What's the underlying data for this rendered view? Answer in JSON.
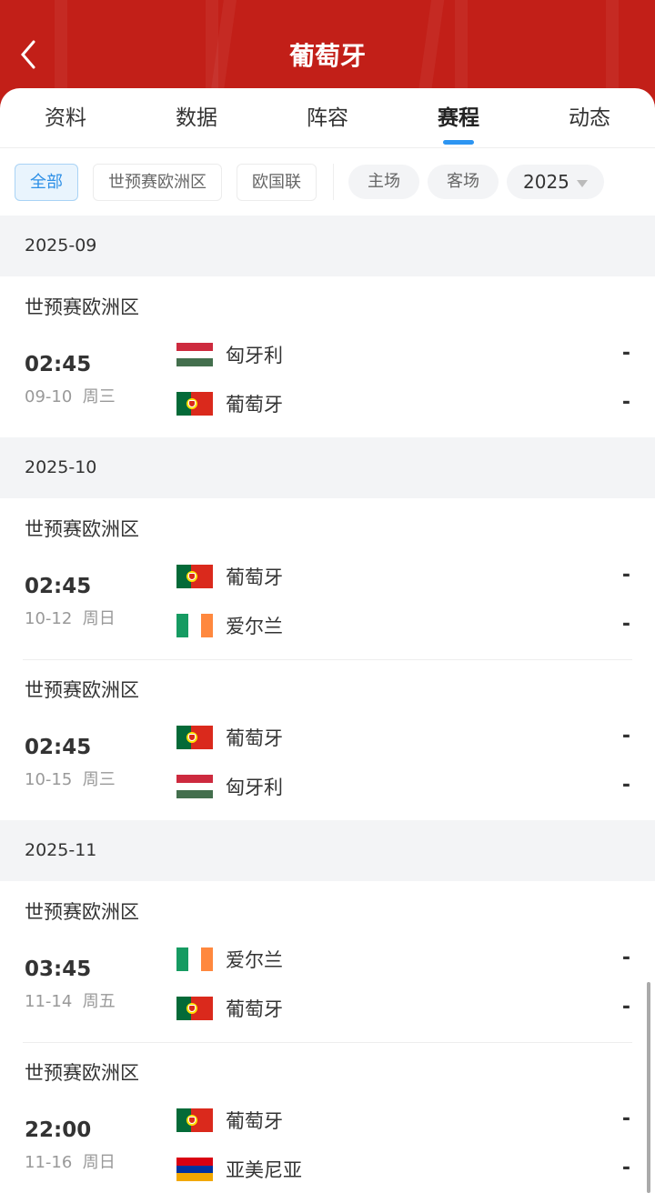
{
  "header": {
    "title": "葡萄牙",
    "back_icon": "chevron-left-icon",
    "bg": "#c21f18"
  },
  "tabs": [
    {
      "label": "资料"
    },
    {
      "label": "数据"
    },
    {
      "label": "阵容"
    },
    {
      "label": "赛程",
      "active": true
    },
    {
      "label": "动态"
    }
  ],
  "filters": {
    "competitions": [
      {
        "label": "全部",
        "selected": true
      },
      {
        "label": "世预赛欧洲区"
      },
      {
        "label": "欧国联"
      }
    ],
    "venue": [
      {
        "label": "主场"
      },
      {
        "label": "客场"
      }
    ],
    "year": "2025"
  },
  "accent": "#2d95f2",
  "months": [
    {
      "label": "2025-09",
      "matches": [
        {
          "league": "世预赛欧洲区",
          "time": "02:45",
          "date": "09-10  周三",
          "home": {
            "name": "匈牙利",
            "flag": "hungary"
          },
          "away": {
            "name": "葡萄牙",
            "flag": "portugal"
          },
          "home_score": "-",
          "away_score": "-"
        }
      ]
    },
    {
      "label": "2025-10",
      "matches": [
        {
          "league": "世预赛欧洲区",
          "time": "02:45",
          "date": "10-12  周日",
          "home": {
            "name": "葡萄牙",
            "flag": "portugal"
          },
          "away": {
            "name": "爱尔兰",
            "flag": "ireland"
          },
          "home_score": "-",
          "away_score": "-"
        },
        {
          "league": "世预赛欧洲区",
          "time": "02:45",
          "date": "10-15  周三",
          "home": {
            "name": "葡萄牙",
            "flag": "portugal"
          },
          "away": {
            "name": "匈牙利",
            "flag": "hungary"
          },
          "home_score": "-",
          "away_score": "-"
        }
      ]
    },
    {
      "label": "2025-11",
      "matches": [
        {
          "league": "世预赛欧洲区",
          "time": "03:45",
          "date": "11-14  周五",
          "home": {
            "name": "爱尔兰",
            "flag": "ireland"
          },
          "away": {
            "name": "葡萄牙",
            "flag": "portugal"
          },
          "home_score": "-",
          "away_score": "-"
        },
        {
          "league": "世预赛欧洲区",
          "time": "22:00",
          "date": "11-16  周日",
          "home": {
            "name": "葡萄牙",
            "flag": "portugal"
          },
          "away": {
            "name": "亚美尼亚",
            "flag": "armenia"
          },
          "home_score": "-",
          "away_score": "-"
        }
      ]
    }
  ]
}
